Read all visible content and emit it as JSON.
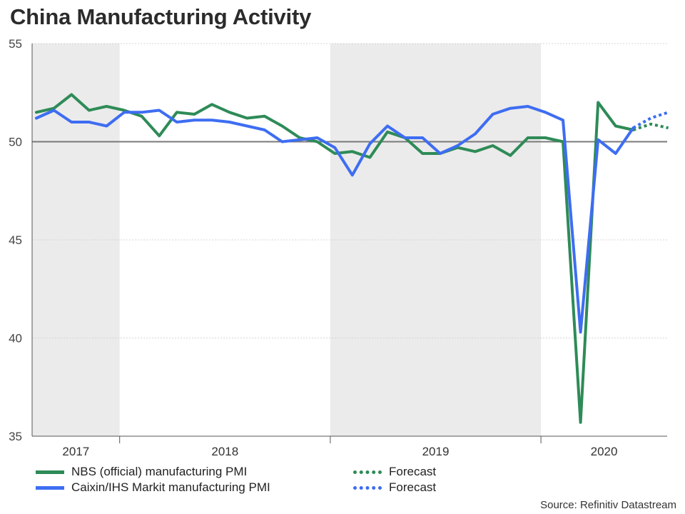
{
  "title": "China Manufacturing Activity",
  "source": "Source: Refinitiv Datastream",
  "colors": {
    "nbs": "#2e8b57",
    "caixin": "#3e6df2",
    "baseline": "#7a7a7a",
    "shade": "#ebebeb"
  },
  "legend": {
    "nbs": "NBS (official) manufacturing PMI",
    "caixin": "Caixin/IHS Markit manufacturing PMI",
    "forecast1": "Forecast",
    "forecast2": "Forecast"
  },
  "chart_data": {
    "type": "line",
    "title": "China Manufacturing Activity",
    "ylim": [
      35,
      55
    ],
    "yticks": [
      35,
      40,
      45,
      50,
      55
    ],
    "baseline": 50,
    "x_range": [
      0,
      36
    ],
    "year_labels": [
      {
        "label": "2017",
        "start": 0,
        "end": 5
      },
      {
        "label": "2018",
        "start": 5,
        "end": 17
      },
      {
        "label": "2019",
        "start": 17,
        "end": 29
      },
      {
        "label": "2020",
        "start": 29,
        "end": 36
      }
    ],
    "shaded_years": [
      "2017",
      "2019"
    ],
    "series": [
      {
        "name": "NBS (official) manufacturing PMI",
        "x": [
          0,
          1,
          2,
          3,
          4,
          5,
          6,
          7,
          8,
          9,
          10,
          11,
          12,
          13,
          14,
          15,
          16,
          17,
          18,
          19,
          20,
          21,
          22,
          23,
          24,
          25,
          26,
          27,
          28,
          29,
          30,
          31,
          32,
          33,
          34
        ],
        "values": [
          51.5,
          51.7,
          52.4,
          51.6,
          51.8,
          51.6,
          51.3,
          50.3,
          51.5,
          51.4,
          51.9,
          51.5,
          51.2,
          51.3,
          50.8,
          50.2,
          50.0,
          49.4,
          49.5,
          49.2,
          50.5,
          50.2,
          49.4,
          49.4,
          49.7,
          49.5,
          49.8,
          49.3,
          50.2,
          50.2,
          50.0,
          35.7,
          52.0,
          50.8,
          50.6
        ],
        "forecast": {
          "x": [
            34,
            35,
            36
          ],
          "values": [
            50.6,
            50.9,
            50.7
          ]
        }
      },
      {
        "name": "Caixin/IHS Markit manufacturing PMI",
        "x": [
          0,
          1,
          2,
          3,
          4,
          5,
          6,
          7,
          8,
          9,
          10,
          11,
          12,
          13,
          14,
          15,
          16,
          17,
          18,
          19,
          20,
          21,
          22,
          23,
          24,
          25,
          26,
          27,
          28,
          29,
          30,
          31,
          32,
          33,
          34
        ],
        "values": [
          51.2,
          51.6,
          51.0,
          51.0,
          50.8,
          51.5,
          51.5,
          51.6,
          51.0,
          51.1,
          51.1,
          51.0,
          50.8,
          50.6,
          50.0,
          50.1,
          50.2,
          49.7,
          48.3,
          49.9,
          50.8,
          50.2,
          50.2,
          49.4,
          49.8,
          50.4,
          51.4,
          51.7,
          51.8,
          51.5,
          51.1,
          40.3,
          50.1,
          49.4,
          50.7
        ],
        "forecast": {
          "x": [
            34,
            35,
            36
          ],
          "values": [
            50.7,
            51.2,
            51.5
          ]
        }
      }
    ]
  }
}
